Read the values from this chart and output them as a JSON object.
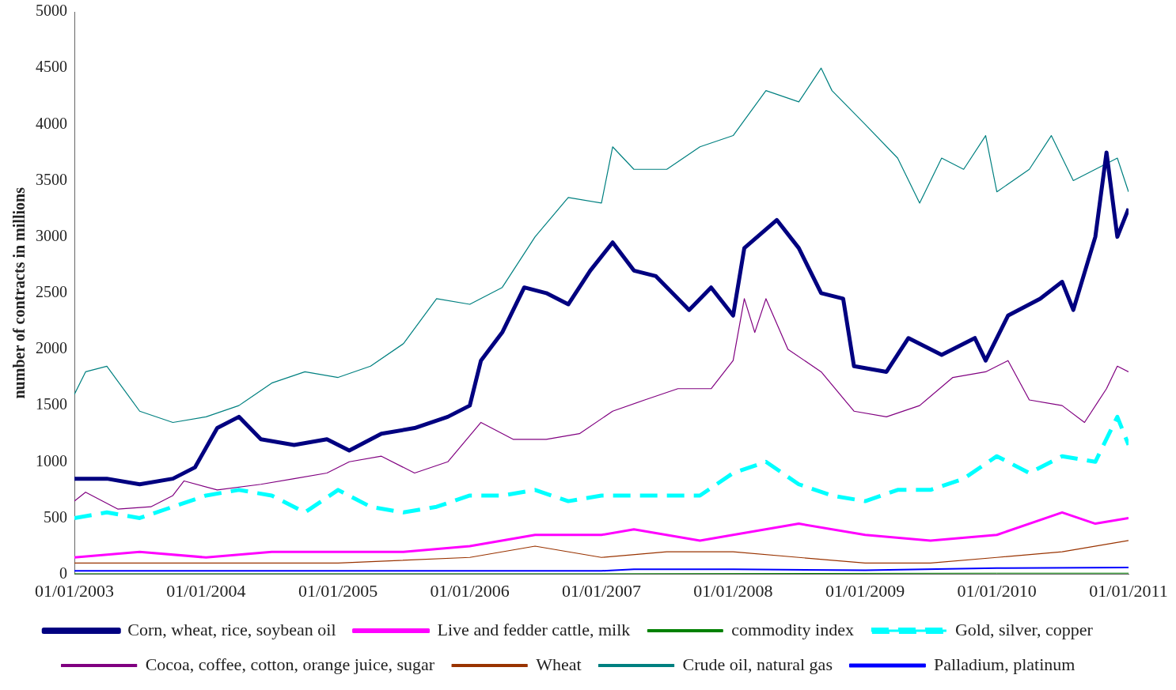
{
  "chart_data": {
    "type": "line",
    "ylabel": "number of contracts in millions",
    "ylim": [
      0,
      5000
    ],
    "yticks": [
      0,
      500,
      1000,
      1500,
      2000,
      2500,
      3000,
      3500,
      4000,
      4500,
      5000
    ],
    "xlim": [
      "2003-01-01",
      "2011-01-01"
    ],
    "xticks": [
      {
        "value": "2003-01-01",
        "label": "01/01/2003"
      },
      {
        "value": "2004-01-01",
        "label": "01/01/2004"
      },
      {
        "value": "2005-01-01",
        "label": "01/01/2005"
      },
      {
        "value": "2006-01-01",
        "label": "01/01/2006"
      },
      {
        "value": "2007-01-01",
        "label": "01/01/2007"
      },
      {
        "value": "2008-01-01",
        "label": "01/01/2008"
      },
      {
        "value": "2009-01-01",
        "label": "01/01/2009"
      },
      {
        "value": "2010-01-01",
        "label": "01/01/2010"
      },
      {
        "value": "2011-01-01",
        "label": "01/01/2011"
      }
    ],
    "grid": false,
    "legend": "bottom",
    "marker": "none",
    "series": [
      {
        "name": "Corn, wheat, rice, soybean oil",
        "color": "#000080",
        "x": [
          "2003-01",
          "2003-04",
          "2003-07",
          "2003-10",
          "2003-12",
          "2004-02",
          "2004-04",
          "2004-06",
          "2004-09",
          "2004-12",
          "2005-02",
          "2005-05",
          "2005-08",
          "2005-11",
          "2006-01",
          "2006-02",
          "2006-04",
          "2006-06",
          "2006-08",
          "2006-10",
          "2006-12",
          "2007-02",
          "2007-04",
          "2007-06",
          "2007-09",
          "2007-11",
          "2008-01",
          "2008-02",
          "2008-05",
          "2008-07",
          "2008-09",
          "2008-11",
          "2008-12",
          "2009-03",
          "2009-05",
          "2009-08",
          "2009-11",
          "2009-12",
          "2010-02",
          "2010-05",
          "2010-07",
          "2010-08",
          "2010-10",
          "2010-11",
          "2010-12",
          "2011-01"
        ],
        "values": [
          850,
          850,
          800,
          850,
          950,
          1300,
          1400,
          1200,
          1150,
          1200,
          1100,
          1250,
          1300,
          1400,
          1500,
          1900,
          2150,
          2550,
          2500,
          2400,
          2700,
          2950,
          2700,
          2650,
          2350,
          2550,
          2300,
          2900,
          3150,
          2900,
          2500,
          2450,
          1850,
          1800,
          2100,
          1950,
          2100,
          1900,
          2300,
          2450,
          2600,
          2350,
          3000,
          3750,
          3000,
          3250
        ]
      },
      {
        "name": "Live and fedder cattle, milk",
        "color": "#ff00ff",
        "x": [
          "2003-01",
          "2003-07",
          "2004-01",
          "2004-07",
          "2005-01",
          "2005-07",
          "2006-01",
          "2006-07",
          "2007-01",
          "2007-04",
          "2007-10",
          "2008-01",
          "2008-07",
          "2009-01",
          "2009-07",
          "2010-01",
          "2010-07",
          "2010-10",
          "2011-01"
        ],
        "values": [
          150,
          200,
          150,
          200,
          200,
          200,
          250,
          350,
          350,
          400,
          300,
          350,
          450,
          350,
          300,
          350,
          550,
          450,
          500
        ]
      },
      {
        "name": "commodity index",
        "color": "#008000",
        "x": [
          "2003-01",
          "2007-01",
          "2010-01",
          "2011-01"
        ],
        "values": [
          5,
          5,
          10,
          10
        ]
      },
      {
        "name": "Gold, silver, copper",
        "color": "#00ffff",
        "line_style": "dashed",
        "x": [
          "2003-01",
          "2003-04",
          "2003-07",
          "2003-10",
          "2004-01",
          "2004-04",
          "2004-07",
          "2004-10",
          "2005-01",
          "2005-04",
          "2005-07",
          "2005-10",
          "2006-01",
          "2006-04",
          "2006-07",
          "2006-10",
          "2007-01",
          "2007-04",
          "2007-07",
          "2007-10",
          "2008-01",
          "2008-04",
          "2008-07",
          "2008-10",
          "2009-01",
          "2009-04",
          "2009-07",
          "2009-10",
          "2010-01",
          "2010-04",
          "2010-07",
          "2010-10",
          "2010-12",
          "2011-01"
        ],
        "values": [
          500,
          550,
          500,
          600,
          700,
          750,
          700,
          550,
          750,
          600,
          550,
          600,
          700,
          700,
          750,
          650,
          700,
          700,
          700,
          700,
          900,
          1000,
          800,
          700,
          650,
          750,
          750,
          850,
          1050,
          900,
          1050,
          1000,
          1400,
          1150
        ]
      },
      {
        "name": "Cocoa, coffee, cotton, orange juice, sugar",
        "color": "#800080",
        "x": [
          "2003-01",
          "2003-02",
          "2003-05",
          "2003-08",
          "2003-10",
          "2003-11",
          "2004-02",
          "2004-06",
          "2004-09",
          "2004-12",
          "2005-02",
          "2005-05",
          "2005-08",
          "2005-11",
          "2006-02",
          "2006-05",
          "2006-08",
          "2006-11",
          "2007-02",
          "2007-05",
          "2007-08",
          "2007-11",
          "2008-01",
          "2008-02",
          "2008-03",
          "2008-04",
          "2008-06",
          "2008-09",
          "2008-12",
          "2009-03",
          "2009-06",
          "2009-09",
          "2009-12",
          "2010-02",
          "2010-04",
          "2010-07",
          "2010-09",
          "2010-11",
          "2010-12",
          "2011-01"
        ],
        "values": [
          650,
          730,
          580,
          600,
          700,
          830,
          750,
          800,
          850,
          900,
          1000,
          1050,
          900,
          1000,
          1350,
          1200,
          1200,
          1250,
          1450,
          1550,
          1650,
          1650,
          1900,
          2450,
          2150,
          2450,
          2000,
          1800,
          1450,
          1400,
          1500,
          1750,
          1800,
          1900,
          1550,
          1500,
          1350,
          1650,
          1850,
          1800
        ]
      },
      {
        "name": "Wheat",
        "color": "#993300",
        "x": [
          "2003-01",
          "2004-01",
          "2005-01",
          "2006-01",
          "2006-07",
          "2007-01",
          "2007-07",
          "2008-01",
          "2008-07",
          "2009-01",
          "2009-07",
          "2010-01",
          "2010-07",
          "2011-01"
        ],
        "values": [
          100,
          100,
          100,
          150,
          250,
          150,
          200,
          200,
          150,
          100,
          100,
          150,
          200,
          300
        ]
      },
      {
        "name": "Crude oil, natural gas",
        "color": "#008080",
        "x": [
          "2003-01",
          "2003-02",
          "2003-04",
          "2003-07",
          "2003-10",
          "2004-01",
          "2004-04",
          "2004-07",
          "2004-10",
          "2005-01",
          "2005-04",
          "2005-07",
          "2005-10",
          "2006-01",
          "2006-04",
          "2006-07",
          "2006-10",
          "2007-01",
          "2007-02",
          "2007-04",
          "2007-07",
          "2007-10",
          "2008-01",
          "2008-04",
          "2008-07",
          "2008-09",
          "2008-10",
          "2009-01",
          "2009-04",
          "2009-06",
          "2009-08",
          "2009-10",
          "2009-12",
          "2010-01",
          "2010-04",
          "2010-06",
          "2010-08",
          "2010-10",
          "2010-12",
          "2011-01"
        ],
        "values": [
          1600,
          1800,
          1850,
          1450,
          1350,
          1400,
          1500,
          1700,
          1800,
          1750,
          1850,
          2050,
          2450,
          2400,
          2550,
          3000,
          3350,
          3300,
          3800,
          3600,
          3600,
          3800,
          3900,
          4300,
          4200,
          4500,
          4300,
          4000,
          3700,
          3300,
          3700,
          3600,
          3900,
          3400,
          3600,
          3900,
          3500,
          3600,
          3700,
          3400
        ]
      },
      {
        "name": "Palladium, platinum",
        "color": "#0000ff",
        "x": [
          "2003-01",
          "2007-01",
          "2007-04",
          "2008-01",
          "2009-01",
          "2010-01",
          "2011-01"
        ],
        "values": [
          30,
          30,
          45,
          45,
          35,
          55,
          60
        ]
      }
    ]
  }
}
